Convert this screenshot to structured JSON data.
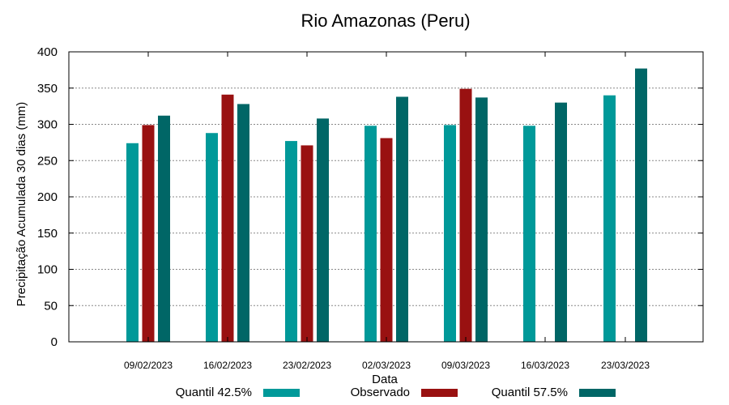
{
  "chart_data": {
    "type": "bar",
    "title": "Rio Amazonas (Peru)",
    "xlabel": "Data",
    "ylabel": "Precipitação Acumulada 30 dias (mm)",
    "ylim": [
      0,
      400
    ],
    "yticks": [
      0,
      50,
      100,
      150,
      200,
      250,
      300,
      350,
      400
    ],
    "grid": true,
    "legend_position": "bottom",
    "categories": [
      "09/02/2023",
      "16/02/2023",
      "23/02/2023",
      "02/03/2023",
      "09/03/2023",
      "16/03/2023",
      "23/03/2023"
    ],
    "series": [
      {
        "name": "Quantil 42.5%",
        "color": "#009999",
        "values": [
          274,
          288,
          277,
          298,
          299,
          298,
          340
        ]
      },
      {
        "name": "Observado",
        "color": "#991111",
        "values": [
          299,
          341,
          271,
          281,
          349,
          null,
          null
        ]
      },
      {
        "name": "Quantil 57.5%",
        "color": "#006666",
        "values": [
          312,
          328,
          308,
          338,
          337,
          330,
          377
        ]
      }
    ]
  }
}
